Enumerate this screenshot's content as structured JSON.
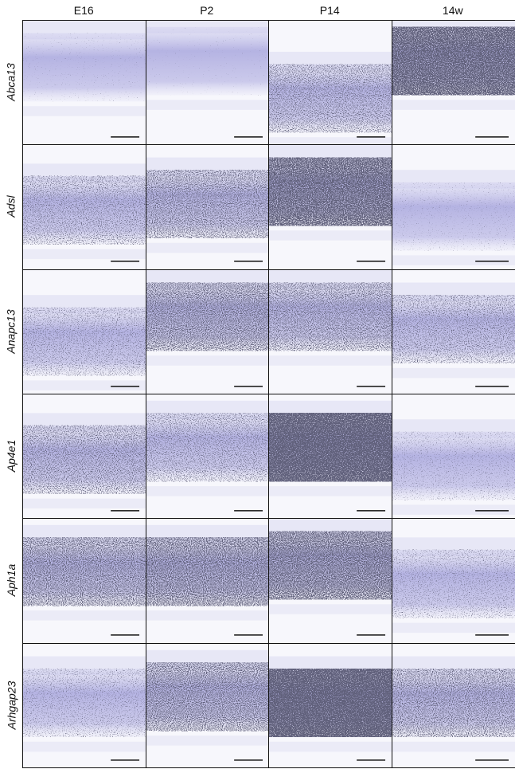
{
  "columns": [
    "E16",
    "P2",
    "P14",
    "14w"
  ],
  "rows": [
    "Abca13",
    "Adsl",
    "Anapc13",
    "Ap4e1",
    "Aph1a",
    "Arhgap23"
  ]
}
